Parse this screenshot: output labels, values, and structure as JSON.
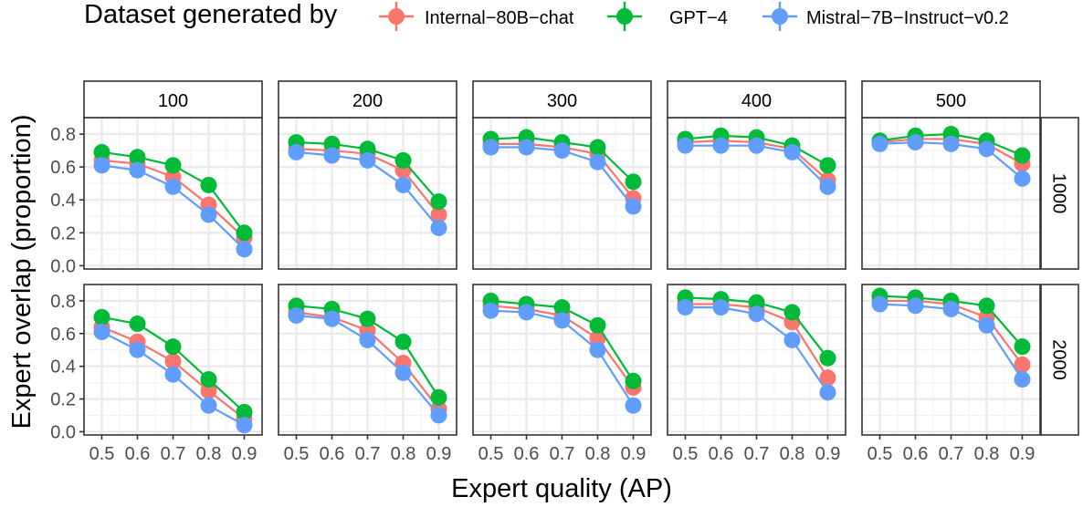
{
  "chart_data": {
    "type": "line",
    "legend": {
      "title": "Dataset generated by",
      "position": "top"
    },
    "xlabel": "Expert quality (AP)",
    "ylabel": "Expert overlap (proportion)",
    "x": [
      0.5,
      0.6,
      0.7,
      0.8,
      0.9
    ],
    "x_tick_labels": [
      "0.5",
      "0.6",
      "0.7",
      "0.8",
      "0.9"
    ],
    "ylim": [
      -0.02,
      0.9
    ],
    "y_ticks": [
      0.0,
      0.2,
      0.4,
      0.6,
      0.8
    ],
    "y_tick_labels": [
      "0.0",
      "0.2",
      "0.4",
      "0.6",
      "0.8"
    ],
    "grid": true,
    "column_labels": [
      "100",
      "200",
      "300",
      "400",
      "500"
    ],
    "row_labels": [
      "1000",
      "2000"
    ],
    "series_styles": [
      {
        "name": "Internal−80B−chat",
        "color": "#f8766d"
      },
      {
        "name": "GPT−4",
        "color": "#00ba38"
      },
      {
        "name": "Mistral−7B−Instruct−v0.2",
        "color": "#619cff"
      }
    ],
    "panels": [
      {
        "row": "1000",
        "col": "100",
        "series": [
          {
            "name": "Internal−80B−chat",
            "values": [
              0.64,
              0.62,
              0.54,
              0.37,
              0.17
            ],
            "errors": [
              0.02,
              0.03,
              0.03,
              0.03,
              0.03
            ]
          },
          {
            "name": "GPT−4",
            "values": [
              0.69,
              0.66,
              0.61,
              0.49,
              0.2
            ],
            "errors": [
              0.02,
              0.02,
              0.03,
              0.03,
              0.03
            ]
          },
          {
            "name": "Mistral−7B−Instruct−v0.2",
            "values": [
              0.61,
              0.58,
              0.48,
              0.31,
              0.1
            ],
            "errors": [
              0.02,
              0.03,
              0.03,
              0.03,
              0.02
            ]
          }
        ]
      },
      {
        "row": "1000",
        "col": "200",
        "series": [
          {
            "name": "Internal−80B−chat",
            "values": [
              0.71,
              0.7,
              0.68,
              0.58,
              0.31
            ],
            "errors": [
              0.02,
              0.02,
              0.02,
              0.03,
              0.04
            ]
          },
          {
            "name": "GPT−4",
            "values": [
              0.75,
              0.74,
              0.71,
              0.64,
              0.39
            ],
            "errors": [
              0.02,
              0.02,
              0.02,
              0.03,
              0.04
            ]
          },
          {
            "name": "Mistral−7B−Instruct−v0.2",
            "values": [
              0.69,
              0.67,
              0.64,
              0.49,
              0.23
            ],
            "errors": [
              0.02,
              0.02,
              0.02,
              0.04,
              0.04
            ]
          }
        ]
      },
      {
        "row": "1000",
        "col": "300",
        "series": [
          {
            "name": "Internal−80B−chat",
            "values": [
              0.74,
              0.74,
              0.72,
              0.68,
              0.41
            ],
            "errors": [
              0.02,
              0.02,
              0.02,
              0.02,
              0.04
            ]
          },
          {
            "name": "GPT−4",
            "values": [
              0.77,
              0.78,
              0.75,
              0.72,
              0.51
            ],
            "errors": [
              0.02,
              0.02,
              0.02,
              0.02,
              0.04
            ]
          },
          {
            "name": "Mistral−7B−Instruct−v0.2",
            "values": [
              0.72,
              0.72,
              0.7,
              0.63,
              0.36
            ],
            "errors": [
              0.02,
              0.02,
              0.02,
              0.03,
              0.05
            ]
          }
        ]
      },
      {
        "row": "1000",
        "col": "400",
        "series": [
          {
            "name": "Internal−80B−chat",
            "values": [
              0.75,
              0.76,
              0.75,
              0.71,
              0.52
            ],
            "errors": [
              0.02,
              0.02,
              0.02,
              0.02,
              0.04
            ]
          },
          {
            "name": "GPT−4",
            "values": [
              0.77,
              0.79,
              0.78,
              0.73,
              0.61
            ],
            "errors": [
              0.02,
              0.02,
              0.02,
              0.02,
              0.04
            ]
          },
          {
            "name": "Mistral−7B−Instruct−v0.2",
            "values": [
              0.73,
              0.73,
              0.73,
              0.69,
              0.48
            ],
            "errors": [
              0.02,
              0.02,
              0.02,
              0.02,
              0.05
            ]
          }
        ]
      },
      {
        "row": "1000",
        "col": "500",
        "series": [
          {
            "name": "Internal−80B−chat",
            "values": [
              0.75,
              0.77,
              0.77,
              0.74,
              0.62
            ],
            "errors": [
              0.02,
              0.02,
              0.02,
              0.02,
              0.03
            ]
          },
          {
            "name": "GPT−4",
            "values": [
              0.76,
              0.79,
              0.8,
              0.76,
              0.67
            ],
            "errors": [
              0.02,
              0.02,
              0.02,
              0.02,
              0.03
            ]
          },
          {
            "name": "Mistral−7B−Instruct−v0.2",
            "values": [
              0.74,
              0.75,
              0.74,
              0.71,
              0.53
            ],
            "errors": [
              0.02,
              0.02,
              0.02,
              0.02,
              0.04
            ]
          }
        ]
      },
      {
        "row": "2000",
        "col": "100",
        "series": [
          {
            "name": "Internal−80B−chat",
            "values": [
              0.64,
              0.55,
              0.43,
              0.25,
              0.08
            ],
            "errors": [
              0.02,
              0.03,
              0.04,
              0.04,
              0.03
            ]
          },
          {
            "name": "GPT−4",
            "values": [
              0.7,
              0.66,
              0.52,
              0.32,
              0.12
            ],
            "errors": [
              0.02,
              0.02,
              0.04,
              0.04,
              0.03
            ]
          },
          {
            "name": "Mistral−7B−Instruct−v0.2",
            "values": [
              0.61,
              0.5,
              0.35,
              0.16,
              0.04
            ],
            "errors": [
              0.02,
              0.04,
              0.05,
              0.04,
              0.02
            ]
          }
        ]
      },
      {
        "row": "2000",
        "col": "200",
        "series": [
          {
            "name": "Internal−80B−chat",
            "values": [
              0.73,
              0.7,
              0.62,
              0.42,
              0.14
            ],
            "errors": [
              0.02,
              0.02,
              0.03,
              0.04,
              0.04
            ]
          },
          {
            "name": "GPT−4",
            "values": [
              0.77,
              0.75,
              0.69,
              0.55,
              0.21
            ],
            "errors": [
              0.02,
              0.02,
              0.03,
              0.04,
              0.04
            ]
          },
          {
            "name": "Mistral−7B−Instruct−v0.2",
            "values": [
              0.71,
              0.69,
              0.56,
              0.36,
              0.1
            ],
            "errors": [
              0.02,
              0.02,
              0.04,
              0.05,
              0.03
            ]
          }
        ]
      },
      {
        "row": "2000",
        "col": "300",
        "series": [
          {
            "name": "Internal−80B−chat",
            "values": [
              0.77,
              0.75,
              0.71,
              0.57,
              0.27
            ],
            "errors": [
              0.02,
              0.02,
              0.02,
              0.04,
              0.05
            ]
          },
          {
            "name": "GPT−4",
            "values": [
              0.8,
              0.78,
              0.76,
              0.65,
              0.31
            ],
            "errors": [
              0.02,
              0.02,
              0.02,
              0.03,
              0.05
            ]
          },
          {
            "name": "Mistral−7B−Instruct−v0.2",
            "values": [
              0.74,
              0.73,
              0.68,
              0.5,
              0.16
            ],
            "errors": [
              0.02,
              0.02,
              0.03,
              0.05,
              0.04
            ]
          }
        ]
      },
      {
        "row": "2000",
        "col": "400",
        "series": [
          {
            "name": "Internal−80B−chat",
            "values": [
              0.78,
              0.78,
              0.76,
              0.67,
              0.33
            ],
            "errors": [
              0.02,
              0.02,
              0.02,
              0.03,
              0.05
            ]
          },
          {
            "name": "GPT−4",
            "values": [
              0.82,
              0.81,
              0.79,
              0.73,
              0.45
            ],
            "errors": [
              0.02,
              0.02,
              0.02,
              0.03,
              0.05
            ]
          },
          {
            "name": "Mistral−7B−Instruct−v0.2",
            "values": [
              0.76,
              0.76,
              0.72,
              0.56,
              0.24
            ],
            "errors": [
              0.02,
              0.02,
              0.02,
              0.04,
              0.05
            ]
          }
        ]
      },
      {
        "row": "2000",
        "col": "500",
        "series": [
          {
            "name": "Internal−80B−chat",
            "values": [
              0.8,
              0.8,
              0.78,
              0.7,
              0.41
            ],
            "errors": [
              0.02,
              0.02,
              0.02,
              0.03,
              0.05
            ]
          },
          {
            "name": "GPT−4",
            "values": [
              0.83,
              0.82,
              0.8,
              0.77,
              0.52
            ],
            "errors": [
              0.02,
              0.02,
              0.02,
              0.03,
              0.05
            ]
          },
          {
            "name": "Mistral−7B−Instruct−v0.2",
            "values": [
              0.78,
              0.77,
              0.75,
              0.65,
              0.32
            ],
            "errors": [
              0.02,
              0.02,
              0.02,
              0.04,
              0.05
            ]
          }
        ]
      }
    ]
  }
}
